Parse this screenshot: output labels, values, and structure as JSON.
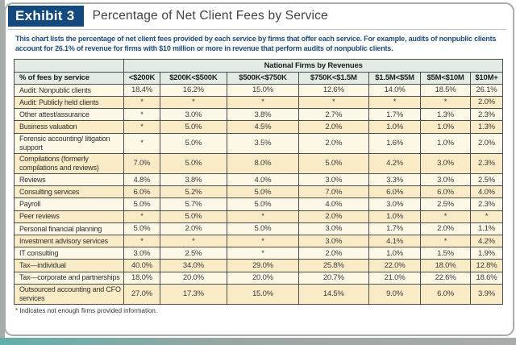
{
  "exhibit": {
    "label": "Exhibit 3",
    "title": "Percentage of Net Client Fees by Service"
  },
  "description": "This chart lists the percentage of net client fees provided by each service by firms that offer each service. For example, audits of nonpublic clients account for 26.1% of revenue for firms with $10 million or more in revenue that perform audits of nonpublic clients.",
  "footnote": "* Indicates not enough firms provided information.",
  "chart_data": {
    "type": "table",
    "group_header": "National Firms by Revenues",
    "row_header": "% of fees by service",
    "columns": [
      "<$200K",
      "$200K<$500K",
      "$500K<$750K",
      "$750K<$1.5M",
      "$1.5M<$5M",
      "$5M<$10M",
      "$10M+"
    ],
    "rows": [
      {
        "label": "Audit: Nonpublic clients",
        "values": [
          "18.4%",
          "16.2%",
          "15.0%",
          "12.6%",
          "14.0%",
          "18.5%",
          "26.1%"
        ]
      },
      {
        "label": "Audit: Publicly held clients",
        "values": [
          "*",
          "*",
          "*",
          "*",
          "*",
          "*",
          "2.0%"
        ]
      },
      {
        "label": "Other attest/assurance",
        "values": [
          "*",
          "3.0%",
          "3.8%",
          "2.7%",
          "1.7%",
          "1.3%",
          "2.3%"
        ]
      },
      {
        "label": "Business valuation",
        "values": [
          "*",
          "5.0%",
          "4.5%",
          "2.0%",
          "1.0%",
          "1.0%",
          "1.3%"
        ]
      },
      {
        "label": "Forensic accounting/ litigation support",
        "values": [
          "*",
          "5.0%",
          "3.5%",
          "2.0%",
          "1.6%",
          "1.0%",
          "2.0%"
        ]
      },
      {
        "label": "Compilations (formerly compilations and reviews)",
        "values": [
          "7.0%",
          "5.0%",
          "8.0%",
          "5.0%",
          "4.2%",
          "3.0%",
          "2.3%"
        ]
      },
      {
        "label": "Reviews",
        "values": [
          "4.8%",
          "3.8%",
          "4.0%",
          "3.0%",
          "3.3%",
          "3.0%",
          "2.5%"
        ]
      },
      {
        "label": "Consulting services",
        "values": [
          "6.0%",
          "5.2%",
          "5.0%",
          "7.0%",
          "6.0%",
          "6.0%",
          "4.0%"
        ]
      },
      {
        "label": "Payroll",
        "values": [
          "5.0%",
          "5.7%",
          "5.0%",
          "4.0%",
          "3.0%",
          "2.5%",
          "2.3%"
        ]
      },
      {
        "label": "Peer reviews",
        "values": [
          "*",
          "5.0%",
          "*",
          "2.0%",
          "1.0%",
          "*",
          "*"
        ]
      },
      {
        "label": "Personal financial planning",
        "values": [
          "5.0%",
          "2.0%",
          "5.0%",
          "3.0%",
          "1.7%",
          "2.0%",
          "1.1%"
        ]
      },
      {
        "label": "Investment advisory services",
        "values": [
          "*",
          "*",
          "*",
          "3.0%",
          "4.1%",
          "*",
          "4.2%"
        ]
      },
      {
        "label": "IT consulting",
        "values": [
          "3.0%",
          "2.5%",
          "*",
          "2.0%",
          "1.0%",
          "1.5%",
          "1.9%"
        ]
      },
      {
        "label": "Tax—individual",
        "values": [
          "40.0%",
          "34.0%",
          "29.0%",
          "25.8%",
          "22.0%",
          "18.0%",
          "12.8%"
        ]
      },
      {
        "label": "Tax—corporate and partnerships",
        "values": [
          "18.0%",
          "20.0%",
          "20.0%",
          "20.7%",
          "21.0%",
          "22.6%",
          "18.6%"
        ]
      },
      {
        "label": "Outsourced accounting and CFO services",
        "values": [
          "27.0%",
          "17.3%",
          "15.0%",
          "14.5%",
          "9.0%",
          "6.0%",
          "3.9%"
        ]
      }
    ]
  },
  "colors": {
    "navy": "#124a7f",
    "desc_blue": "#1d4d80",
    "header_green": "#e3ece4",
    "row_light": "#fdf7e6",
    "row_dark": "#f8ebc6",
    "frame_gray": "#a6acaa",
    "teal_accent": "#62afa9"
  }
}
